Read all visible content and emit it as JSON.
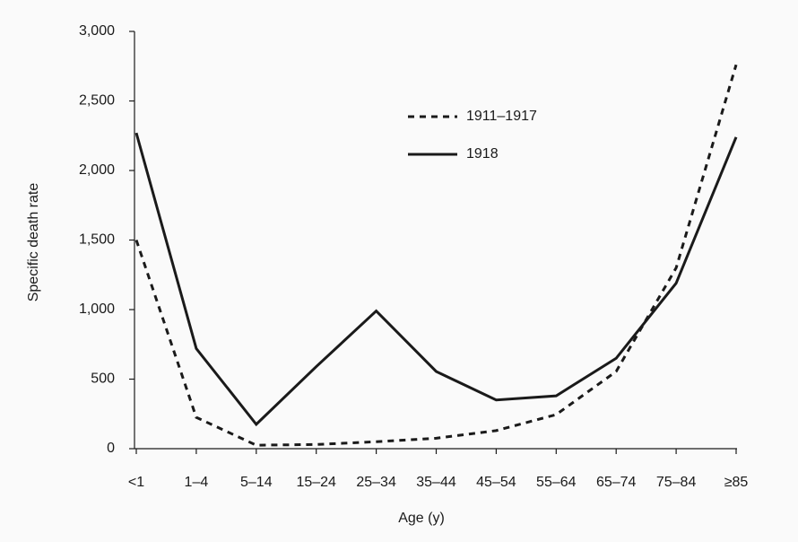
{
  "chart_data": {
    "type": "line",
    "x_label": "Age (y)",
    "y_label": "Specific death rate",
    "categories": [
      "<1",
      "1–4",
      "5–14",
      "15–24",
      "25–34",
      "35–44",
      "45–54",
      "55–64",
      "65–74",
      "75–84",
      "≥85"
    ],
    "series": [
      {
        "name": "1911–1917",
        "color": "#1a1a1a",
        "line_style": "dashed",
        "values": [
          1500,
          225,
          25,
          30,
          50,
          75,
          130,
          245,
          555,
          1300,
          2760
        ]
      },
      {
        "name": "1918",
        "color": "#1a1a1a",
        "line_style": "solid",
        "values": [
          2270,
          720,
          175,
          590,
          990,
          555,
          350,
          380,
          650,
          1190,
          2240
        ]
      }
    ],
    "ylim": [
      0,
      3000
    ],
    "yticks": [
      0,
      500,
      {
        "value": 1000,
        "label": "1,000"
      },
      {
        "value": 1500,
        "label": "1,500"
      },
      {
        "value": 2000,
        "label": "2,000"
      },
      {
        "value": 2500,
        "label": "2,500"
      },
      {
        "value": 3000,
        "label": "3,000"
      }
    ],
    "grid": false
  }
}
